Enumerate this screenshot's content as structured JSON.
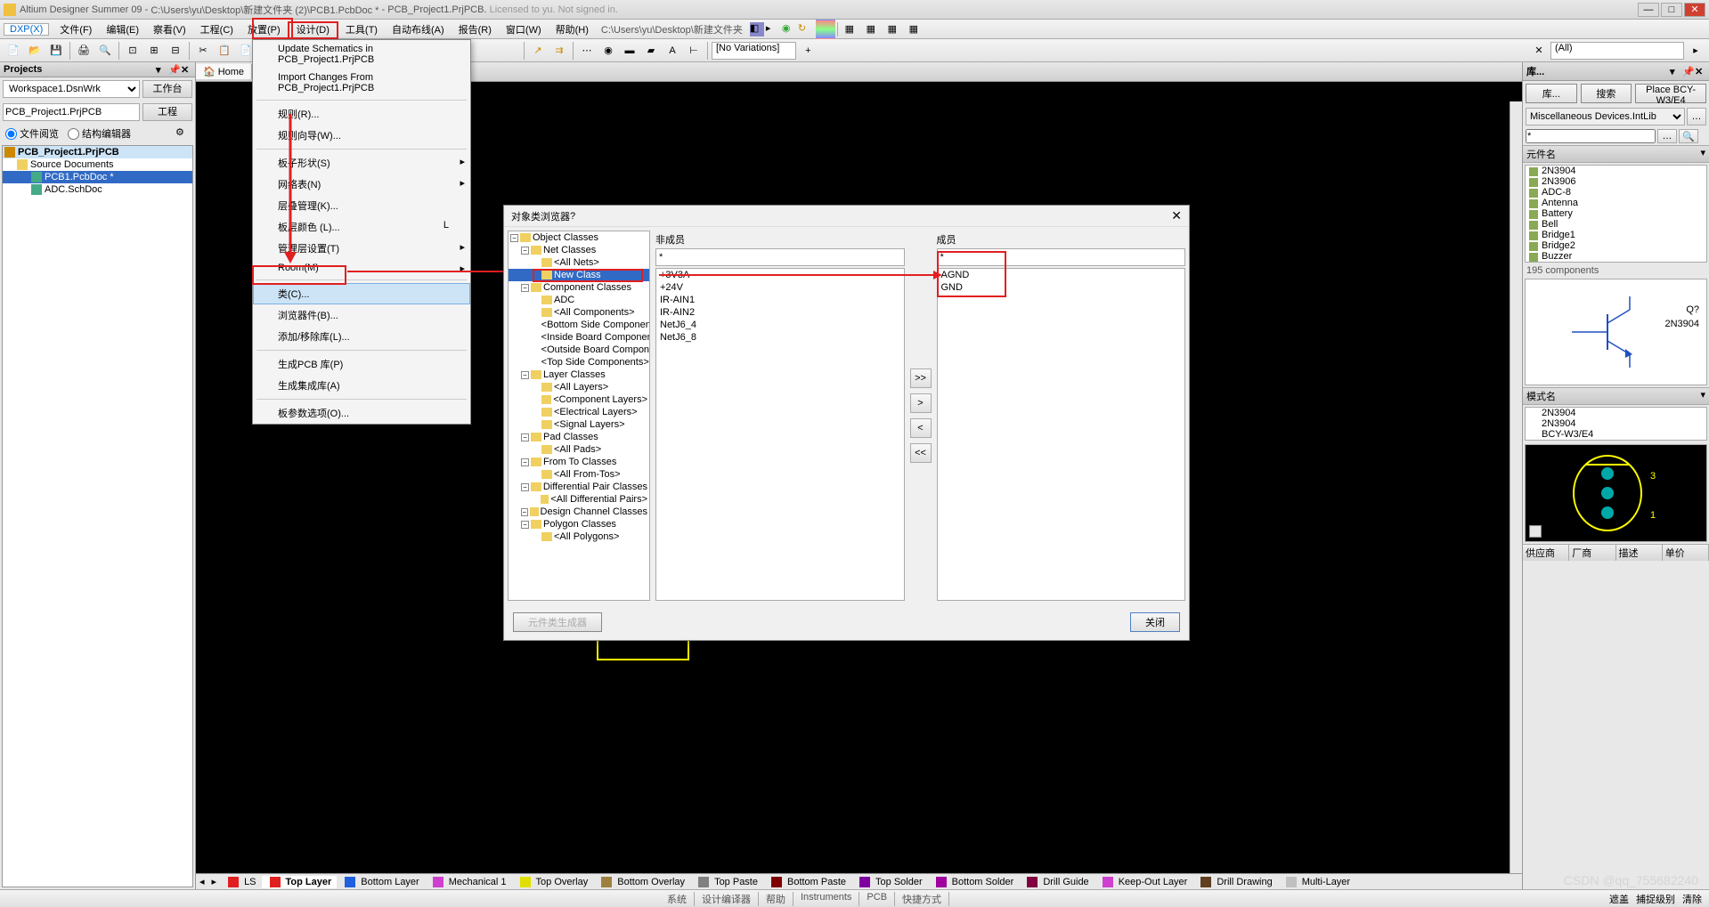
{
  "title": {
    "app": "Altium Designer Summer 09",
    "path": "C:\\Users\\yu\\Desktop\\新建文件夹 (2)\\PCB1.PcbDoc *",
    "project": "PCB_Project1.PrjPCB.",
    "licensed": "Licensed to",
    "user": "yu. Not signed in."
  },
  "menu": {
    "dxp": "DXP(X)",
    "items": [
      "文件(F)",
      "编辑(E)",
      "察看(V)",
      "工程(C)",
      "放置(P)",
      "设计(D)",
      "工具(T)",
      "自动布线(A)",
      "报告(R)",
      "窗口(W)",
      "帮助(H)"
    ],
    "highlighted_index": 5,
    "filepath": "C:\\Users\\yu\\Desktop\\新建文件夹"
  },
  "toolbar": {
    "variations_combo": "[No Variations]",
    "filter_combo": "(All)"
  },
  "left_panel": {
    "header": "Projects",
    "workspace": "Workspace1.DsnWrk",
    "workspace_btn": "工作台",
    "project": "PCB_Project1.PrjPCB",
    "project_btn": "工程",
    "radio1": "文件阅览",
    "radio2": "结构编辑器",
    "tree": {
      "root": "PCB_Project1.PrjPCB",
      "folder": "Source Documents",
      "docs": [
        "PCB1.PcbDoc *",
        "ADC.SchDoc"
      ]
    }
  },
  "tabs_top": {
    "home": "Home"
  },
  "dropdown": {
    "items": [
      {
        "label": "Update Schematics in PCB_Project1.PrjPCB",
        "sep": false
      },
      {
        "label": "Import Changes From PCB_Project1.PrjPCB",
        "sep": true
      },
      {
        "label": "规则(R)...",
        "sep": false,
        "icon": "rules"
      },
      {
        "label": "规则向导(W)...",
        "sep": true
      },
      {
        "label": "板子形状(S)",
        "arrow": true,
        "sep": false
      },
      {
        "label": "网络表(N)",
        "arrow": true,
        "sep": false
      },
      {
        "label": "层叠管理(K)...",
        "sep": false
      },
      {
        "label": "板层颜色 (L)...",
        "shortcut": "L",
        "sep": false
      },
      {
        "label": "管理层设置(T)",
        "arrow": true,
        "sep": false
      },
      {
        "label": "Room(M)",
        "arrow": true,
        "sep": true
      },
      {
        "label": "类(C)...",
        "hl": true,
        "sep": false
      },
      {
        "label": "浏览器件(B)...",
        "sep": false,
        "icon": "browse"
      },
      {
        "label": "添加/移除库(L)...",
        "sep": true,
        "icon": "lib"
      },
      {
        "label": "生成PCB 库(P)",
        "sep": false
      },
      {
        "label": "生成集成库(A)",
        "sep": true
      },
      {
        "label": "板参数选项(O)...",
        "sep": false
      }
    ]
  },
  "dialog": {
    "title": "对象类浏览器",
    "col1_header": "非成员",
    "col2_header": "成员",
    "tree": [
      {
        "l": 0,
        "label": "Object Classes"
      },
      {
        "l": 1,
        "label": "Net Classes"
      },
      {
        "l": 2,
        "label": "<All Nets>"
      },
      {
        "l": 2,
        "label": "New Class",
        "selected": true
      },
      {
        "l": 1,
        "label": "Component Classes"
      },
      {
        "l": 2,
        "label": "ADC"
      },
      {
        "l": 2,
        "label": "<All Components>"
      },
      {
        "l": 2,
        "label": "<Bottom Side Components>"
      },
      {
        "l": 2,
        "label": "<Inside Board Components>"
      },
      {
        "l": 2,
        "label": "<Outside Board Components>"
      },
      {
        "l": 2,
        "label": "<Top Side Components>"
      },
      {
        "l": 1,
        "label": "Layer Classes"
      },
      {
        "l": 2,
        "label": "<All Layers>"
      },
      {
        "l": 2,
        "label": "<Component Layers>"
      },
      {
        "l": 2,
        "label": "<Electrical Layers>"
      },
      {
        "l": 2,
        "label": "<Signal Layers>"
      },
      {
        "l": 1,
        "label": "Pad Classes"
      },
      {
        "l": 2,
        "label": "<All Pads>"
      },
      {
        "l": 1,
        "label": "From To Classes"
      },
      {
        "l": 2,
        "label": "<All From-Tos>"
      },
      {
        "l": 1,
        "label": "Differential Pair Classes"
      },
      {
        "l": 2,
        "label": "<All Differential Pairs>"
      },
      {
        "l": 1,
        "label": "Design Channel Classes"
      },
      {
        "l": 1,
        "label": "Polygon Classes"
      },
      {
        "l": 2,
        "label": "<All Polygons>"
      }
    ],
    "nonmembers": [
      "+3V3A",
      "+24V",
      "IR-AIN1",
      "IR-AIN2",
      "NetJ6_4",
      "NetJ6_8"
    ],
    "members": [
      "AGND",
      "GND"
    ],
    "move_btns": [
      ">>",
      ">",
      "<",
      "<<"
    ],
    "footer_left": "元件类生成器",
    "footer_right": "关闭"
  },
  "right_panel": {
    "header": "库...",
    "btns": [
      "库...",
      "搜索",
      "Place BCY-W3/E4"
    ],
    "lib_combo": "Miscellaneous Devices.IntLib",
    "filter_val": "*",
    "comp_header": "元件名",
    "components": [
      "2N3904",
      "2N3906",
      "ADC-8",
      "Antenna",
      "Battery",
      "Bell",
      "Bridge1",
      "Bridge2",
      "Buzzer"
    ],
    "count": "195 components",
    "preview_label1": "Q?",
    "preview_label2": "2N3904",
    "model_header": "模式名",
    "models": [
      "2N3904",
      "2N3904",
      "BCY-W3/E4"
    ],
    "pcb_nums": [
      "3",
      "1"
    ],
    "supplier_headers": [
      "供应商",
      "厂商",
      "描述",
      "单价"
    ]
  },
  "layer_tabs": [
    {
      "label": "LS",
      "color": "#e02020"
    },
    {
      "label": "Top Layer",
      "color": "#e02020",
      "active": true
    },
    {
      "label": "Bottom Layer",
      "color": "#2060e0"
    },
    {
      "label": "Mechanical 1",
      "color": "#d040d0"
    },
    {
      "label": "Top Overlay",
      "color": "#e0e000"
    },
    {
      "label": "Bottom Overlay",
      "color": "#a08040"
    },
    {
      "label": "Top Paste",
      "color": "#808080"
    },
    {
      "label": "Bottom Paste",
      "color": "#800000"
    },
    {
      "label": "Top Solder",
      "color": "#8000a0"
    },
    {
      "label": "Bottom Solder",
      "color": "#a000a0"
    },
    {
      "label": "Drill Guide",
      "color": "#800040"
    },
    {
      "label": "Keep-Out Layer",
      "color": "#d040d0"
    },
    {
      "label": "Drill Drawing",
      "color": "#604020"
    },
    {
      "label": "Multi-Layer",
      "color": "#c0c0c0"
    }
  ],
  "statusbar": {
    "segs": [
      "系统",
      "设计编译器",
      "帮助",
      "Instruments",
      "PCB",
      "快捷方式"
    ],
    "right": [
      "遮盖",
      "捕捉级别",
      "清除"
    ]
  },
  "watermark": "CSDN @qq_755682240",
  "colors": {
    "pad_color": "#00a8a8",
    "yellow": "#ffff00",
    "canvas": "#000000"
  }
}
